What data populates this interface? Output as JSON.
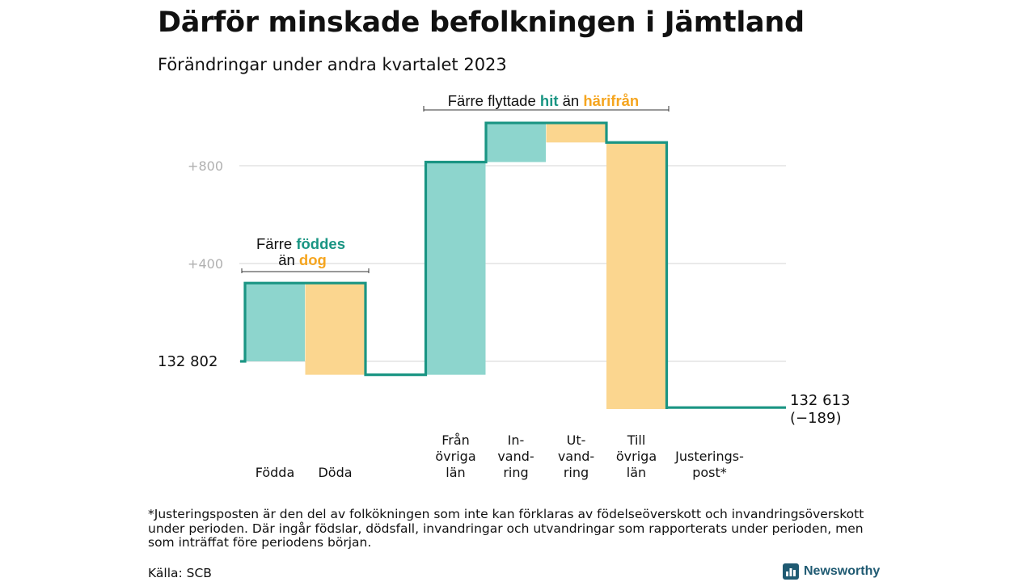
{
  "header": {
    "title": "Därför minskade befolkningen i Jämtland",
    "subtitle": "Förändringar under andra kvartalet 2023"
  },
  "colors": {
    "inflow": "#8dd5cd",
    "outflow": "#fbd68f",
    "line": "#1a9583",
    "accent_teal": "#1a9583",
    "accent_orange": "#f5a51f",
    "grid": "#dddddd"
  },
  "chart_data": {
    "type": "waterfall",
    "title": "Därför minskade befolkningen i Jämtland",
    "subtitle": "Förändringar under andra kvartalet 2023",
    "baseline": 132802,
    "start_label": "132   802",
    "end_label_line1": "132 613",
    "end_label_line2": "(−189)",
    "y_ticks": [
      {
        "value": 400,
        "label": "+400"
      },
      {
        "value": 800,
        "label": "+800"
      }
    ],
    "ylim": [
      -230,
      1020
    ],
    "grid": true,
    "steps": [
      {
        "name": "Födda",
        "label_lines": [
          "Födda"
        ],
        "delta": 320,
        "kind": "inflow"
      },
      {
        "name": "Döda",
        "label_lines": [
          "Döda"
        ],
        "delta": -375,
        "kind": "outflow"
      },
      {
        "name": "gap",
        "label_lines": [],
        "delta": 0,
        "kind": "none"
      },
      {
        "name": "Från övriga län",
        "label_lines": [
          "Från",
          "övriga",
          "län"
        ],
        "delta": 870,
        "kind": "inflow"
      },
      {
        "name": "Invandring",
        "label_lines": [
          "In-",
          "vand-",
          "ring"
        ],
        "delta": 160,
        "kind": "inflow"
      },
      {
        "name": "Utvandring",
        "label_lines": [
          "Ut-",
          "vand-",
          "ring"
        ],
        "delta": -80,
        "kind": "outflow"
      },
      {
        "name": "Till övriga län",
        "label_lines": [
          "Till",
          "övriga",
          "län"
        ],
        "delta": -1090,
        "kind": "outflow"
      },
      {
        "name": "Justeringspost*",
        "label_lines": [
          "Justerings-",
          "post*"
        ],
        "delta": 6,
        "kind": "adjust"
      }
    ],
    "annotations": [
      {
        "id": "births",
        "line1_plain": "Färre ",
        "line1_teal": "föddes",
        "line2_plain": "än ",
        "line2_orange": "dog"
      },
      {
        "id": "migration",
        "plain1": "Färre flyttade ",
        "teal": "hit",
        "plain2": " än ",
        "orange": "härifrån"
      }
    ]
  },
  "footnote": "*Justeringsposten är den del av folkökningen som inte kan förklaras av födelseöverskott och invandringsöverskott under perioden. Där ingår födslar, dödsfall, invandringar och utvandringar som rapporterats under perioden, men som inträffat före periodens början.",
  "source": "Källa: SCB",
  "brand": {
    "name": "Newsworthy",
    "icon": "bar-chart-logo-icon"
  }
}
